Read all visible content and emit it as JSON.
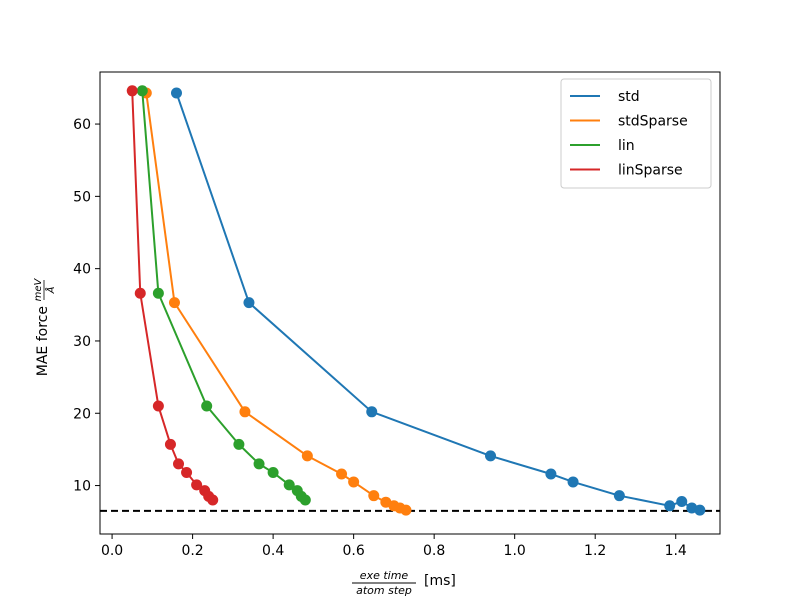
{
  "chart_data": {
    "type": "line",
    "title": "",
    "xlabel": {
      "numerator": "exe time",
      "denominator": "atom step",
      "unit": "[ms]"
    },
    "ylabel": {
      "text": "MAE force",
      "numerator": "meV",
      "denominator": "Å"
    },
    "xlim": [
      -0.03,
      1.51
    ],
    "ylim": [
      3.3,
      67.2
    ],
    "xticks": [
      0.0,
      0.2,
      0.4,
      0.6,
      0.8,
      1.0,
      1.2,
      1.4
    ],
    "xtick_labels": [
      "0.0",
      "0.2",
      "0.4",
      "0.6",
      "0.8",
      "1.0",
      "1.2",
      "1.4"
    ],
    "yticks": [
      10,
      20,
      30,
      40,
      50,
      60
    ],
    "ytick_labels": [
      "10",
      "20",
      "30",
      "40",
      "50",
      "60"
    ],
    "grid": false,
    "legend_position": "top-right",
    "reference_line": {
      "y": 6.5,
      "style": "dashed",
      "color": "#000000"
    },
    "series": [
      {
        "name": "std",
        "color": "#1f77b4",
        "x": [
          0.16,
          0.34,
          0.645,
          0.94,
          1.09,
          1.145,
          1.26,
          1.385,
          1.415,
          1.44,
          1.46
        ],
        "y": [
          64.3,
          35.3,
          20.2,
          14.1,
          11.6,
          10.5,
          8.6,
          7.2,
          7.8,
          6.9,
          6.6
        ]
      },
      {
        "name": "stdSparse",
        "color": "#ff7f0e",
        "x": [
          0.085,
          0.155,
          0.33,
          0.485,
          0.57,
          0.6,
          0.65,
          0.68,
          0.7,
          0.715,
          0.73
        ],
        "y": [
          64.3,
          35.3,
          20.2,
          14.1,
          11.6,
          10.5,
          8.6,
          7.7,
          7.2,
          6.9,
          6.6
        ]
      },
      {
        "name": "lin",
        "color": "#2ca02c",
        "x": [
          0.075,
          0.115,
          0.235,
          0.315,
          0.365,
          0.4,
          0.44,
          0.46,
          0.47,
          0.48
        ],
        "y": [
          64.6,
          36.6,
          21.0,
          15.7,
          13.0,
          11.8,
          10.1,
          9.3,
          8.5,
          8.0
        ]
      },
      {
        "name": "linSparse",
        "color": "#d62728",
        "x": [
          0.05,
          0.07,
          0.115,
          0.145,
          0.165,
          0.185,
          0.21,
          0.23,
          0.24,
          0.25
        ],
        "y": [
          64.6,
          36.6,
          21.0,
          15.7,
          13.0,
          11.8,
          10.1,
          9.3,
          8.5,
          8.0
        ]
      }
    ]
  }
}
